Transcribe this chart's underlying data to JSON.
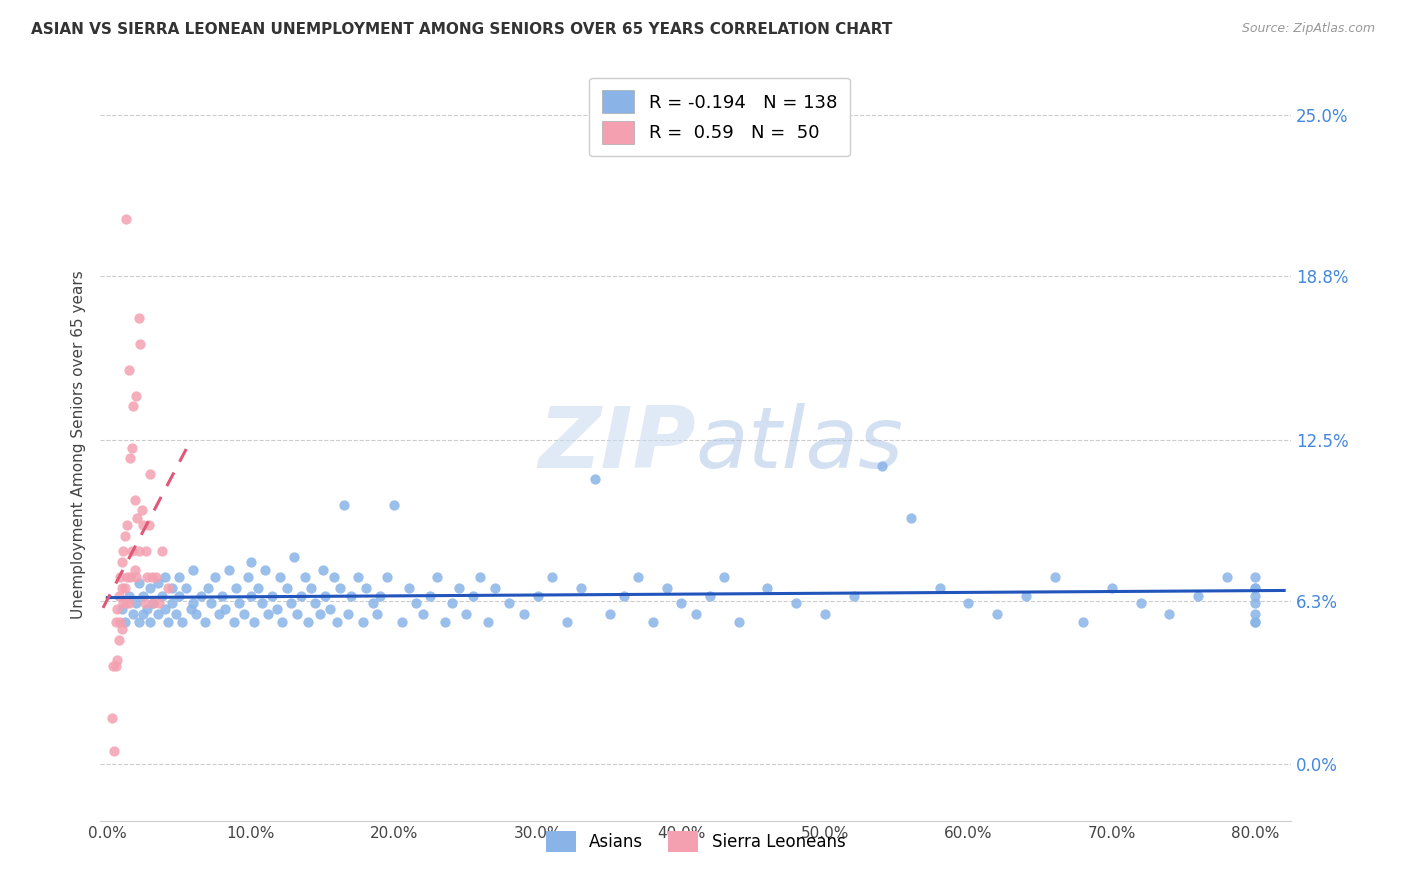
{
  "title": "ASIAN VS SIERRA LEONEAN UNEMPLOYMENT AMONG SENIORS OVER 65 YEARS CORRELATION CHART",
  "source": "Source: ZipAtlas.com",
  "ylabel": "Unemployment Among Seniors over 65 years",
  "xlabel_ticks": [
    "0.0%",
    "10.0%",
    "20.0%",
    "30.0%",
    "40.0%",
    "50.0%",
    "60.0%",
    "70.0%",
    "80.0%"
  ],
  "xlabel_vals": [
    0.0,
    0.1,
    0.2,
    0.3,
    0.4,
    0.5,
    0.6,
    0.7,
    0.8
  ],
  "ytick_labels": [
    "0.0%",
    "6.3%",
    "12.5%",
    "18.8%",
    "25.0%"
  ],
  "ytick_vals": [
    0.0,
    0.063,
    0.125,
    0.188,
    0.25
  ],
  "xlim": [
    -0.005,
    0.825
  ],
  "ylim": [
    -0.022,
    0.268
  ],
  "asian_color": "#8ab4e8",
  "sl_color": "#f4a0b0",
  "asian_line_color": "#2255bb",
  "sl_line_color": "#e05878",
  "R_asian": -0.194,
  "N_asian": 138,
  "R_sl": 0.59,
  "N_sl": 50,
  "watermark_zip": "ZIP",
  "watermark_atlas": "atlas",
  "background_color": "#ffffff",
  "asian_scatter_x": [
    0.01,
    0.012,
    0.015,
    0.018,
    0.02,
    0.022,
    0.022,
    0.025,
    0.025,
    0.028,
    0.03,
    0.03,
    0.032,
    0.035,
    0.035,
    0.038,
    0.04,
    0.04,
    0.042,
    0.045,
    0.045,
    0.048,
    0.05,
    0.05,
    0.052,
    0.055,
    0.058,
    0.06,
    0.06,
    0.062,
    0.065,
    0.068,
    0.07,
    0.072,
    0.075,
    0.078,
    0.08,
    0.082,
    0.085,
    0.088,
    0.09,
    0.092,
    0.095,
    0.098,
    0.1,
    0.1,
    0.102,
    0.105,
    0.108,
    0.11,
    0.112,
    0.115,
    0.118,
    0.12,
    0.122,
    0.125,
    0.128,
    0.13,
    0.132,
    0.135,
    0.138,
    0.14,
    0.142,
    0.145,
    0.148,
    0.15,
    0.152,
    0.155,
    0.158,
    0.16,
    0.162,
    0.165,
    0.168,
    0.17,
    0.175,
    0.178,
    0.18,
    0.185,
    0.188,
    0.19,
    0.195,
    0.2,
    0.205,
    0.21,
    0.215,
    0.22,
    0.225,
    0.23,
    0.235,
    0.24,
    0.245,
    0.25,
    0.255,
    0.26,
    0.265,
    0.27,
    0.28,
    0.29,
    0.3,
    0.31,
    0.32,
    0.33,
    0.34,
    0.35,
    0.36,
    0.37,
    0.38,
    0.39,
    0.4,
    0.41,
    0.42,
    0.43,
    0.44,
    0.46,
    0.48,
    0.5,
    0.52,
    0.54,
    0.56,
    0.58,
    0.6,
    0.62,
    0.64,
    0.66,
    0.68,
    0.7,
    0.72,
    0.74,
    0.76,
    0.78,
    0.8,
    0.8,
    0.8,
    0.8,
    0.8,
    0.8,
    0.8,
    0.8
  ],
  "asian_scatter_y": [
    0.06,
    0.055,
    0.065,
    0.058,
    0.062,
    0.055,
    0.07,
    0.058,
    0.065,
    0.06,
    0.068,
    0.055,
    0.062,
    0.07,
    0.058,
    0.065,
    0.06,
    0.072,
    0.055,
    0.068,
    0.062,
    0.058,
    0.065,
    0.072,
    0.055,
    0.068,
    0.06,
    0.062,
    0.075,
    0.058,
    0.065,
    0.055,
    0.068,
    0.062,
    0.072,
    0.058,
    0.065,
    0.06,
    0.075,
    0.055,
    0.068,
    0.062,
    0.058,
    0.072,
    0.065,
    0.078,
    0.055,
    0.068,
    0.062,
    0.075,
    0.058,
    0.065,
    0.06,
    0.072,
    0.055,
    0.068,
    0.062,
    0.08,
    0.058,
    0.065,
    0.072,
    0.055,
    0.068,
    0.062,
    0.058,
    0.075,
    0.065,
    0.06,
    0.072,
    0.055,
    0.068,
    0.1,
    0.058,
    0.065,
    0.072,
    0.055,
    0.068,
    0.062,
    0.058,
    0.065,
    0.072,
    0.1,
    0.055,
    0.068,
    0.062,
    0.058,
    0.065,
    0.072,
    0.055,
    0.062,
    0.068,
    0.058,
    0.065,
    0.072,
    0.055,
    0.068,
    0.062,
    0.058,
    0.065,
    0.072,
    0.055,
    0.068,
    0.11,
    0.058,
    0.065,
    0.072,
    0.055,
    0.068,
    0.062,
    0.058,
    0.065,
    0.072,
    0.055,
    0.068,
    0.062,
    0.058,
    0.065,
    0.115,
    0.095,
    0.068,
    0.062,
    0.058,
    0.065,
    0.072,
    0.055,
    0.068,
    0.062,
    0.058,
    0.065,
    0.072,
    0.055,
    0.068,
    0.062,
    0.058,
    0.065,
    0.072,
    0.055,
    0.068
  ],
  "sl_scatter_x": [
    0.003,
    0.004,
    0.005,
    0.006,
    0.006,
    0.007,
    0.007,
    0.008,
    0.008,
    0.009,
    0.009,
    0.01,
    0.01,
    0.01,
    0.011,
    0.011,
    0.012,
    0.012,
    0.013,
    0.013,
    0.014,
    0.014,
    0.015,
    0.015,
    0.016,
    0.016,
    0.017,
    0.017,
    0.018,
    0.019,
    0.019,
    0.02,
    0.02,
    0.021,
    0.022,
    0.022,
    0.023,
    0.024,
    0.025,
    0.026,
    0.027,
    0.028,
    0.029,
    0.03,
    0.031,
    0.032,
    0.034,
    0.036,
    0.038,
    0.042
  ],
  "sl_scatter_y": [
    0.018,
    0.038,
    0.005,
    0.055,
    0.038,
    0.06,
    0.04,
    0.065,
    0.048,
    0.072,
    0.055,
    0.068,
    0.052,
    0.078,
    0.082,
    0.062,
    0.088,
    0.068,
    0.21,
    0.062,
    0.092,
    0.072,
    0.152,
    0.062,
    0.118,
    0.072,
    0.122,
    0.082,
    0.138,
    0.102,
    0.075,
    0.142,
    0.072,
    0.095,
    0.082,
    0.172,
    0.162,
    0.098,
    0.092,
    0.062,
    0.082,
    0.072,
    0.092,
    0.112,
    0.072,
    0.062,
    0.072,
    0.062,
    0.082,
    0.068
  ]
}
